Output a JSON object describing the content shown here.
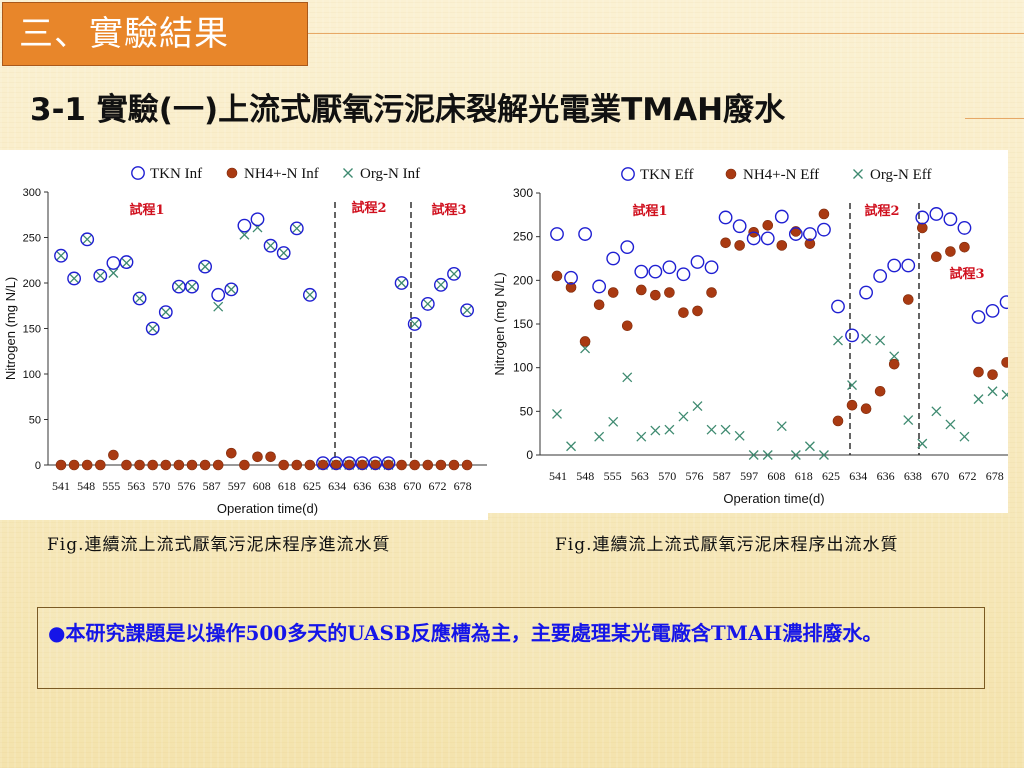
{
  "slide": {
    "section_title": "三、實驗結果",
    "subtitle": "3-1 實驗(一)上流式厭氧污泥床裂解光電業TMAH廢水",
    "caption_left": "Fig.連續流上流式厭氧污泥床程序進流水質",
    "caption_right": "Fig.連續流上流式厭氧污泥床程序出流水質",
    "note_bullet": "●",
    "note": "本研究課題是以操作500多天的UASB反應槽為主，主要處理某光電廠含TMAH濃排廢水。"
  },
  "colors": {
    "accent": "#e8862a",
    "tkn": "#1f1fd2",
    "nh4": "#a93a12",
    "org": "#3e8a70",
    "phase_label": "#d0101e",
    "note_text": "#1515e8"
  },
  "chart_data": [
    {
      "type": "scatter",
      "panel": "influent",
      "ylabel": "Nitrogen (mg N/L)",
      "xlabel": "Operation time(d)",
      "ylim": [
        0,
        300
      ],
      "yticks": [
        0,
        50,
        100,
        150,
        200,
        250,
        300
      ],
      "grid": false,
      "legend_position": "top",
      "tick_labels": [
        "541",
        "548",
        "555",
        "563",
        "570",
        "576",
        "587",
        "597",
        "608",
        "618",
        "625",
        "634",
        "636",
        "638",
        "670",
        "672",
        "678"
      ],
      "phase_labels": [
        "試程1",
        "試程2",
        "試程3"
      ],
      "series": [
        {
          "name": "TKN Inf",
          "marker": "open-circle",
          "values": [
            230,
            205,
            248,
            208,
            222,
            223,
            183,
            150,
            168,
            196,
            196,
            218,
            187,
            193,
            263,
            270,
            241,
            233,
            260,
            187,
            2,
            2,
            2,
            2,
            2,
            2,
            200,
            155,
            177,
            198,
            210,
            170
          ]
        },
        {
          "name": "NH4+-N Inf",
          "marker": "filled-circle",
          "values": [
            0,
            0,
            0,
            0,
            11,
            0,
            0,
            0,
            0,
            0,
            0,
            0,
            0,
            13,
            0,
            9,
            9,
            0,
            0,
            0,
            0,
            0,
            0,
            0,
            0,
            0,
            0,
            0,
            0,
            0,
            0,
            0
          ]
        },
        {
          "name": "Org-N Inf",
          "marker": "x",
          "values": [
            230,
            205,
            248,
            208,
            211,
            222,
            183,
            150,
            168,
            196,
            196,
            218,
            174,
            193,
            253,
            261,
            241,
            233,
            260,
            187,
            0,
            0,
            0,
            0,
            0,
            0,
            200,
            155,
            177,
            198,
            210,
            170
          ]
        }
      ]
    },
    {
      "type": "scatter",
      "panel": "effluent",
      "ylabel": "Nitrogen (mg N/L)",
      "xlabel": "Operation time(d)",
      "ylim": [
        0,
        300
      ],
      "yticks": [
        0,
        50,
        100,
        150,
        200,
        250,
        300
      ],
      "grid": false,
      "legend_position": "top",
      "tick_labels": [
        "541",
        "548",
        "555",
        "563",
        "570",
        "576",
        "587",
        "597",
        "608",
        "618",
        "625",
        "634",
        "636",
        "638",
        "670",
        "672",
        "678"
      ],
      "phase_labels": [
        "試程1",
        "試程2",
        "試程3"
      ],
      "series": [
        {
          "name": "TKN Eff",
          "marker": "open-circle",
          "values": [
            253,
            203,
            253,
            193,
            225,
            238,
            210,
            210,
            215,
            207,
            221,
            215,
            272,
            262,
            248,
            248,
            273,
            253,
            253,
            258,
            170,
            137,
            186,
            205,
            217,
            217,
            272,
            276,
            270,
            260,
            158,
            165,
            175
          ]
        },
        {
          "name": "NH4+-N Eff",
          "marker": "filled-circle",
          "values": [
            205,
            192,
            130,
            172,
            186,
            148,
            189,
            183,
            186,
            163,
            165,
            186,
            243,
            240,
            255,
            263,
            240,
            256,
            242,
            276,
            39,
            57,
            53,
            73,
            104,
            178,
            260,
            227,
            233,
            238,
            95,
            92,
            106
          ]
        },
        {
          "name": "Org-N Eff",
          "marker": "x",
          "values": [
            47,
            10,
            122,
            21,
            38,
            89,
            21,
            28,
            29,
            44,
            56,
            29,
            29,
            22,
            0,
            0,
            33,
            0,
            10,
            0,
            131,
            80,
            133,
            131,
            113,
            40,
            13,
            50,
            35,
            21,
            64,
            73,
            69
          ]
        }
      ]
    }
  ]
}
